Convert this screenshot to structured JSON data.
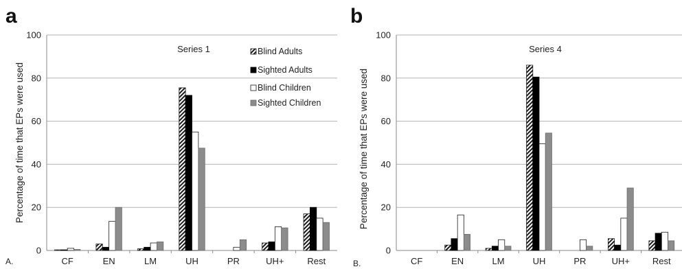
{
  "chart_data": [
    {
      "type": "bar",
      "panel_letter": "a",
      "sub_letter": "A.",
      "title": "Series 1",
      "ylabel": "Percentage of time that EPs were used",
      "xlabel": "",
      "ylim": [
        0,
        100
      ],
      "yticks": [
        "0",
        "20",
        "40",
        "60",
        "80",
        "100"
      ],
      "grid": true,
      "legend": "top-right",
      "categories": [
        "CF",
        "EN",
        "LM",
        "UH",
        "PR",
        "UH+",
        "Rest"
      ],
      "series": [
        {
          "name": "Blind Adults",
          "style": "hatched",
          "values": [
            0.3,
            3,
            0.8,
            75.5,
            0,
            3.5,
            17
          ]
        },
        {
          "name": "Sighted Adults",
          "style": "black",
          "values": [
            0.3,
            1.5,
            1.5,
            72,
            0,
            4,
            20
          ]
        },
        {
          "name": "Blind Children",
          "style": "white",
          "values": [
            1,
            13.5,
            3.5,
            55,
            1.5,
            11,
            15
          ]
        },
        {
          "name": "Sighted Children",
          "style": "gray",
          "values": [
            0.5,
            20,
            4,
            47.5,
            5,
            10.5,
            13
          ]
        }
      ]
    },
    {
      "type": "bar",
      "panel_letter": "b",
      "sub_letter": "B.",
      "title": "Series 4",
      "ylabel": "Percentage of time that EPs were used",
      "xlabel": "",
      "ylim": [
        0,
        100
      ],
      "yticks": [
        "0",
        "20",
        "40",
        "60",
        "80",
        "100"
      ],
      "grid": true,
      "legend": "",
      "categories": [
        "CF",
        "EN",
        "LM",
        "UH",
        "PR",
        "UH+",
        "Rest"
      ],
      "series": [
        {
          "name": "Blind Adults",
          "style": "hatched",
          "values": [
            0,
            2.5,
            1,
            86,
            0,
            5.5,
            4.5
          ]
        },
        {
          "name": "Sighted Adults",
          "style": "black",
          "values": [
            0,
            5.5,
            2,
            80.5,
            0,
            2.5,
            8
          ]
        },
        {
          "name": "Blind Children",
          "style": "white",
          "values": [
            0,
            16.5,
            5,
            49.5,
            5,
            15,
            8.5
          ]
        },
        {
          "name": "Sighted Children",
          "style": "gray",
          "values": [
            0,
            7.5,
            2,
            54.5,
            2,
            29,
            4.5
          ]
        }
      ]
    }
  ],
  "colors": {
    "black": "#000000",
    "white": "#ffffff",
    "gray": "#8c8c8c",
    "grid": "#b3b3b3",
    "axis": "#8a8a8a",
    "outline": "#1a1a1a"
  }
}
